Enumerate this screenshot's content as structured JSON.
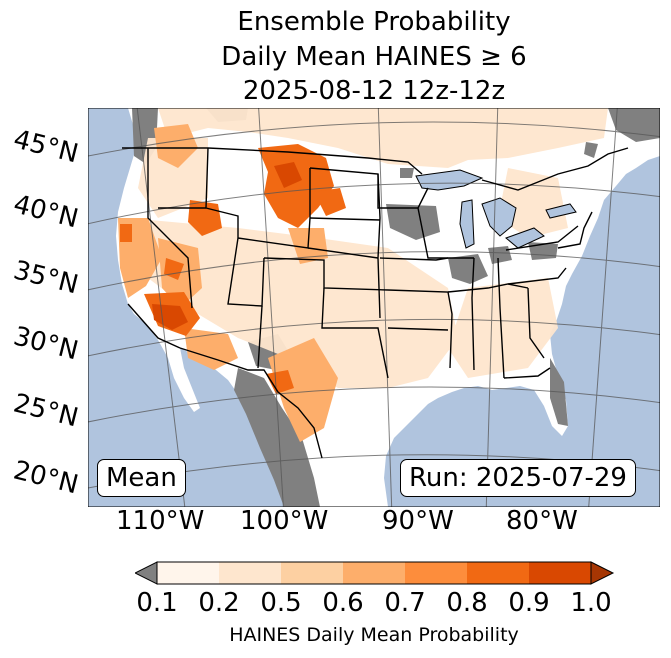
{
  "title": {
    "line1": "Ensemble Probability",
    "line2": "Daily Mean HAINES ≥ 6",
    "line3": "2025-08-12 12z-12z"
  },
  "map": {
    "latitude_labels": [
      "45°N",
      "40°N",
      "35°N",
      "30°N",
      "25°N",
      "20°N"
    ],
    "longitude_labels": [
      "110°W",
      "100°W",
      "90°W",
      "80°W"
    ],
    "colors": {
      "ocean": "#b0c4de",
      "land": "#ffffff",
      "no_data": "#808080",
      "lakes": "#b0c4de"
    }
  },
  "panels": {
    "mean_label": "Mean",
    "run_label": "Run: 2025-07-29"
  },
  "colorbar": {
    "tick_labels": [
      "0.1",
      "0.2",
      "0.5",
      "0.6",
      "0.7",
      "0.8",
      "0.9",
      "1.0"
    ],
    "colors": [
      "#fff5eb",
      "#fee6ce",
      "#fdd0a2",
      "#fdae6b",
      "#fd8d3c",
      "#f16913",
      "#d94801"
    ],
    "under_color": "#808080",
    "over_color": "#a63603",
    "label": "HAINES Daily Mean Probability"
  }
}
